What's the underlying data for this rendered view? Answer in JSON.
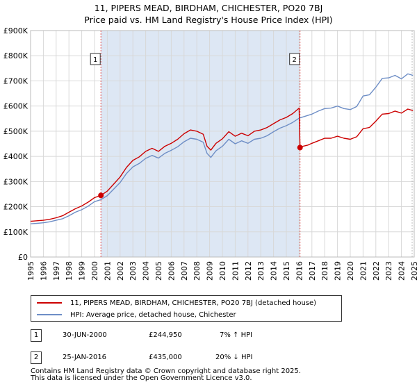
{
  "header": {
    "title_line1": "11, PIPERS MEAD, BIRDHAM, CHICHESTER, PO20 7BJ",
    "title_line2": "Price paid vs. HM Land Registry's House Price Index (HPI)"
  },
  "colors": {
    "property": "#cc0000",
    "hpi": "#6e8ec6",
    "highlight": "#dde7f4",
    "grid": "#d8d8d8",
    "marker_line": "#e05050"
  },
  "chart_data": {
    "type": "line",
    "title": "11, PIPERS MEAD, BIRDHAM, CHICHESTER, PO20 7BJ — Price paid vs. HM Land Registry's House Price Index (HPI)",
    "xlabel": "",
    "ylabel": "",
    "xlim": [
      1995,
      2025
    ],
    "ylim": [
      0,
      900000
    ],
    "x_ticks": [
      "1995",
      "1996",
      "1997",
      "1998",
      "1999",
      "2000",
      "2001",
      "2002",
      "2003",
      "2004",
      "2005",
      "2006",
      "2007",
      "2008",
      "2009",
      "2010",
      "2011",
      "2012",
      "2013",
      "2014",
      "2015",
      "2016",
      "2017",
      "2018",
      "2019",
      "2020",
      "2021",
      "2022",
      "2023",
      "2024",
      "2025"
    ],
    "y_ticks": [
      {
        "value": 0,
        "label": "£0"
      },
      {
        "value": 100000,
        "label": "£100K"
      },
      {
        "value": 200000,
        "label": "£200K"
      },
      {
        "value": 300000,
        "label": "£300K"
      },
      {
        "value": 400000,
        "label": "£400K"
      },
      {
        "value": 500000,
        "label": "£500K"
      },
      {
        "value": 600000,
        "label": "£600K"
      },
      {
        "value": 700000,
        "label": "£700K"
      },
      {
        "value": 800000,
        "label": "£800K"
      },
      {
        "value": 900000,
        "label": "£900K"
      }
    ],
    "grid": true,
    "highlight_band": [
      2000.5,
      2016.07
    ],
    "future_boundary": 2025.0,
    "series": [
      {
        "name": "11, PIPERS MEAD, BIRDHAM, CHICHESTER, PO20 7BJ (detached house)",
        "x": [
          1995.0,
          1995.5,
          1996.0,
          1996.5,
          1997.0,
          1997.5,
          1998.0,
          1998.5,
          1999.0,
          1999.5,
          2000.0,
          2000.5,
          2001.0,
          2001.5,
          2002.0,
          2002.5,
          2003.0,
          2003.5,
          2004.0,
          2004.5,
          2005.0,
          2005.5,
          2006.0,
          2006.5,
          2007.0,
          2007.5,
          2008.0,
          2008.5,
          2008.8,
          2009.1,
          2009.5,
          2010.0,
          2010.5,
          2011.0,
          2011.5,
          2012.0,
          2012.5,
          2013.0,
          2013.5,
          2014.0,
          2014.5,
          2015.0,
          2015.5,
          2016.0,
          2016.07,
          2016.3,
          2016.7,
          2017.0,
          2017.5,
          2018.0,
          2018.5,
          2019.0,
          2019.5,
          2020.0,
          2020.5,
          2021.0,
          2021.5,
          2022.0,
          2022.5,
          2023.0,
          2023.5,
          2024.0,
          2024.5,
          2024.9
        ],
        "values": [
          142000,
          144000,
          146000,
          150000,
          156000,
          164000,
          178000,
          192000,
          203000,
          218000,
          236000,
          244950,
          262000,
          290000,
          318000,
          356000,
          384000,
          398000,
          420000,
          432000,
          420000,
          440000,
          452000,
          468000,
          490000,
          505000,
          500000,
          488000,
          440000,
          425000,
          452000,
          470000,
          498000,
          480000,
          492000,
          482000,
          500000,
          505000,
          515000,
          530000,
          545000,
          555000,
          570000,
          592000,
          435000,
          440000,
          445000,
          452000,
          462000,
          472000,
          472000,
          480000,
          472000,
          468000,
          478000,
          510000,
          515000,
          540000,
          568000,
          570000,
          580000,
          572000,
          588000,
          582000
        ]
      },
      {
        "name": "HPI: Average price, detached house, Chichester",
        "x": [
          1995.0,
          1995.5,
          1996.0,
          1996.5,
          1997.0,
          1997.5,
          1998.0,
          1998.5,
          1999.0,
          1999.5,
          2000.0,
          2000.5,
          2001.0,
          2001.5,
          2002.0,
          2002.5,
          2003.0,
          2003.5,
          2004.0,
          2004.5,
          2005.0,
          2005.5,
          2006.0,
          2006.5,
          2007.0,
          2007.5,
          2008.0,
          2008.5,
          2008.8,
          2009.1,
          2009.5,
          2010.0,
          2010.5,
          2011.0,
          2011.5,
          2012.0,
          2012.5,
          2013.0,
          2013.5,
          2014.0,
          2014.5,
          2015.0,
          2015.5,
          2016.0,
          2016.5,
          2017.0,
          2017.5,
          2018.0,
          2018.5,
          2019.0,
          2019.5,
          2020.0,
          2020.5,
          2021.0,
          2021.5,
          2022.0,
          2022.5,
          2023.0,
          2023.5,
          2024.0,
          2024.5,
          2024.9
        ],
        "values": [
          132000,
          134000,
          136000,
          140000,
          146000,
          152000,
          164000,
          178000,
          188000,
          202000,
          220000,
          228000,
          244000,
          270000,
          296000,
          332000,
          358000,
          372000,
          392000,
          404000,
          393000,
          412000,
          424000,
          438000,
          458000,
          472000,
          468000,
          456000,
          412000,
          396000,
          422000,
          440000,
          468000,
          450000,
          462000,
          452000,
          468000,
          472000,
          482000,
          498000,
          512000,
          522000,
          535000,
          552000,
          560000,
          568000,
          580000,
          590000,
          592000,
          600000,
          590000,
          586000,
          598000,
          640000,
          645000,
          675000,
          710000,
          712000,
          722000,
          708000,
          728000,
          722000
        ]
      }
    ],
    "sale_markers": [
      {
        "label": "1",
        "x": 2000.5,
        "value": 244950
      },
      {
        "label": "2",
        "x": 2016.07,
        "value": 435000
      }
    ]
  },
  "legend": {
    "property_label": "11, PIPERS MEAD, BIRDHAM, CHICHESTER, PO20 7BJ (detached house)",
    "hpi_label": "HPI: Average price, detached house, Chichester"
  },
  "transactions": [
    {
      "num": "1",
      "date": "30-JUN-2000",
      "price": "£244,950",
      "hpi_change": "7% ↑ HPI"
    },
    {
      "num": "2",
      "date": "25-JAN-2016",
      "price": "£435,000",
      "hpi_change": "20% ↓ HPI"
    }
  ],
  "footer": {
    "line1": "Contains HM Land Registry data © Crown copyright and database right 2025.",
    "line2": "This data is licensed under the Open Government Licence v3.0."
  }
}
